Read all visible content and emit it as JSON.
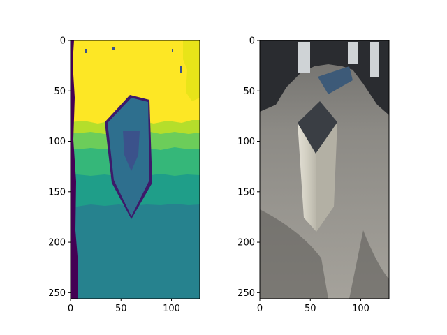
{
  "chart_data": [
    {
      "type": "heatmap",
      "panel": "left",
      "title": "",
      "xlabel": "",
      "ylabel": "",
      "xlim": [
        0,
        128
      ],
      "ylim": [
        256,
        0
      ],
      "x_ticks": [
        0,
        50,
        100
      ],
      "y_ticks": [
        0,
        50,
        100,
        150,
        200,
        250
      ],
      "colormap": "viridis",
      "regions": [
        {
          "name": "yellow",
          "color": "#fde725",
          "y_from": 0,
          "y_to": 80
        },
        {
          "name": "yellow-green",
          "color": "#b5de2b",
          "y_from": 70,
          "y_to": 95
        },
        {
          "name": "light-green",
          "color": "#6ccd5a",
          "y_from": 90,
          "y_to": 112
        },
        {
          "name": "green",
          "color": "#35b779",
          "y_from": 108,
          "y_to": 134
        },
        {
          "name": "teal-green",
          "color": "#1f9e89",
          "y_from": 130,
          "y_to": 165
        },
        {
          "name": "teal",
          "color": "#26828e",
          "y_from": 160,
          "y_to": 256
        },
        {
          "name": "left-edge",
          "color": "#440154",
          "x_from": 0,
          "x_to": 7
        }
      ],
      "object": {
        "color": "#2e6f8e",
        "inner_color": "#3b528b"
      }
    },
    {
      "type": "image",
      "panel": "right",
      "title": "",
      "xlabel": "",
      "ylabel": "",
      "xlim": [
        0,
        128
      ],
      "ylim": [
        256,
        0
      ],
      "x_ticks": [
        0,
        50,
        100
      ],
      "y_ticks": [
        0,
        50,
        100,
        150,
        200,
        250
      ],
      "colors": {
        "floor": "#8c8a85",
        "floor_dark": "#5f5d5a",
        "object_side": "#d6d3c6",
        "object_top": "#3a3e44",
        "background": "#2a2c30"
      }
    }
  ]
}
